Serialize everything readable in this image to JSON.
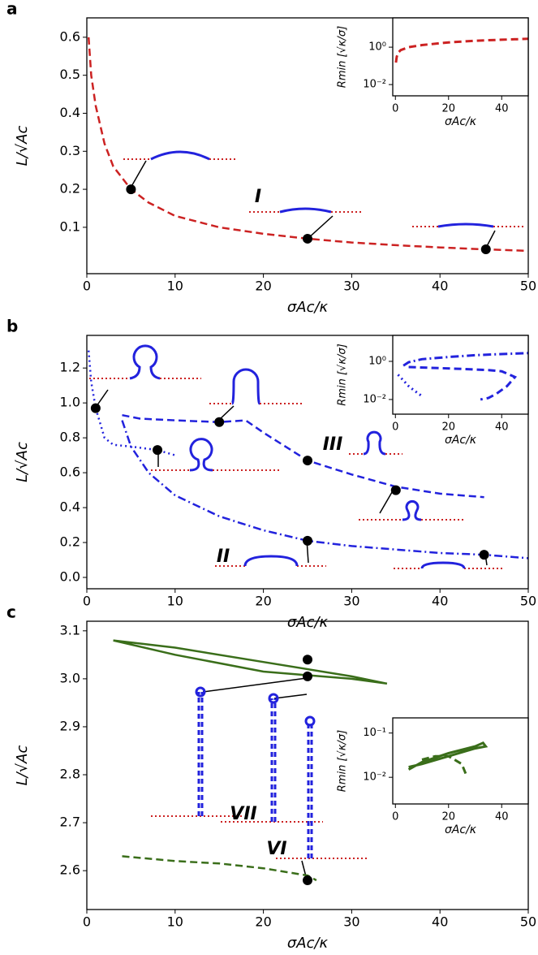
{
  "chart_data": [
    {
      "type": "line",
      "label": "a",
      "xlabel": "σAc/κ",
      "ylabel": "L/√Ac",
      "xlim": [
        0,
        50
      ],
      "xticks": [
        0,
        10,
        20,
        30,
        40,
        50
      ],
      "ylim": [
        -0.022,
        0.651
      ],
      "yticks": [
        0.1,
        0.2,
        0.3,
        0.4,
        0.5,
        0.6
      ],
      "annotations": [
        "I"
      ],
      "series": [
        {
          "style": "dashed",
          "color": "#cc2222",
          "x": [
            0.2,
            0.5,
            1,
            2,
            3,
            5,
            7,
            10,
            15,
            20,
            25,
            30,
            35,
            40,
            45,
            50
          ],
          "values": [
            0.6,
            0.5,
            0.42,
            0.32,
            0.26,
            0.2,
            0.165,
            0.13,
            0.1,
            0.083,
            0.07,
            0.06,
            0.053,
            0.047,
            0.042,
            0.038
          ]
        }
      ],
      "points": {
        "color": "#000000",
        "x": [
          5,
          25,
          45.2
        ],
        "values": [
          0.2,
          0.07,
          0.042
        ]
      }
    },
    {
      "type": "line",
      "inset": true,
      "xlabel": "σAc/κ",
      "ylabel": "Rmin [√κ/σ]",
      "log_y": true,
      "xlim": [
        -1,
        50
      ],
      "xticks": [
        0,
        20,
        40
      ],
      "ylim": [
        0.0025,
        37
      ],
      "yticks": [
        {
          "value": 0.01,
          "label": "10⁻²"
        },
        {
          "value": 1,
          "label": "10⁰"
        }
      ],
      "series": [
        {
          "style": "dashed",
          "color": "#cc2222",
          "x": [
            0.2,
            0.5,
            1,
            2,
            5,
            10,
            20,
            30,
            40,
            50
          ],
          "values": [
            0.15,
            0.3,
            0.5,
            0.7,
            1.0,
            1.3,
            1.8,
            2.2,
            2.5,
            2.8
          ]
        }
      ]
    },
    {
      "type": "line",
      "label": "b",
      "xlabel": "σAc/κ",
      "ylabel": "L/√Ac",
      "xlim": [
        0,
        50
      ],
      "xticks": [
        0,
        10,
        20,
        30,
        40,
        50
      ],
      "ylim": [
        -0.065,
        1.387
      ],
      "yticks": [
        {
          "value": 0,
          "label": "0.0"
        },
        0.2,
        0.4,
        0.6,
        0.8,
        {
          "value": 1,
          "label": "1.0"
        },
        1.2
      ],
      "annotations": [
        "II",
        "III"
      ],
      "series": [
        {
          "style": "dotted",
          "color": "#2222dd",
          "x": [
            0.2,
            0.5,
            1,
            2,
            3,
            5,
            8,
            10
          ],
          "values": [
            1.3,
            1.12,
            0.97,
            0.8,
            0.76,
            0.75,
            0.73,
            0.7
          ]
        },
        {
          "style": "dashed",
          "color": "#2222dd",
          "x": [
            4,
            6,
            10,
            15,
            18,
            20,
            25,
            30,
            35,
            40,
            45
          ],
          "values": [
            0.93,
            0.91,
            0.9,
            0.89,
            0.9,
            0.83,
            0.67,
            0.59,
            0.52,
            0.48,
            0.46
          ]
        },
        {
          "style": "dashdot",
          "color": "#2222dd",
          "x": [
            4,
            5,
            7,
            10,
            15,
            20,
            25,
            30,
            35,
            40,
            45,
            50
          ],
          "values": [
            0.9,
            0.75,
            0.6,
            0.47,
            0.35,
            0.27,
            0.21,
            0.18,
            0.16,
            0.14,
            0.13,
            0.11
          ]
        }
      ],
      "points": {
        "color": "#000000",
        "x": [
          1,
          8,
          15,
          25,
          35,
          25,
          45
        ],
        "values": [
          0.97,
          0.73,
          0.89,
          0.67,
          0.5,
          0.21,
          0.13
        ]
      }
    },
    {
      "type": "line",
      "inset": true,
      "xlabel": "σAc/κ",
      "ylabel": "Rmin [√κ/σ]",
      "log_y": true,
      "xlim": [
        -1,
        50
      ],
      "xticks": [
        0,
        20,
        40
      ],
      "ylim": [
        0.0017,
        23
      ],
      "yticks": [
        {
          "value": 0.01,
          "label": "10⁻²"
        },
        {
          "value": 1,
          "label": "10⁰"
        }
      ],
      "series": [
        {
          "style": "dashdot",
          "color": "#2222dd",
          "x": [
            3,
            5,
            10,
            20,
            30,
            40,
            50
          ],
          "values": [
            0.6,
            0.9,
            1.3,
            1.7,
            2.1,
            2.4,
            2.7
          ]
        },
        {
          "style": "dashed",
          "color": "#2222dd",
          "x": [
            5,
            15,
            25,
            35,
            40,
            45,
            42,
            38,
            35,
            32
          ],
          "values": [
            0.5,
            0.45,
            0.4,
            0.35,
            0.3,
            0.15,
            0.05,
            0.02,
            0.012,
            0.01
          ]
        },
        {
          "style": "dotted",
          "color": "#2222dd",
          "x": [
            1,
            3,
            5,
            7,
            10
          ],
          "values": [
            0.2,
            0.1,
            0.05,
            0.03,
            0.015
          ]
        }
      ]
    },
    {
      "type": "line",
      "label": "c",
      "xlabel": "σAc/κ",
      "ylabel": "L/√Ac",
      "xlim": [
        0,
        50
      ],
      "xticks": [
        0,
        10,
        20,
        30,
        40,
        50
      ],
      "ylim": [
        2.519,
        3.12
      ],
      "yticks": [
        2.6,
        2.7,
        2.8,
        2.9,
        {
          "value": 3,
          "label": "3.0"
        },
        3.1
      ],
      "annotations": [
        "VII",
        "VI"
      ],
      "series": [
        {
          "style": "solid",
          "color": "#3a6e1a",
          "x": [
            3,
            10,
            20,
            30,
            34,
            30,
            20,
            10,
            3
          ],
          "values": [
            3.08,
            3.065,
            3.035,
            3.005,
            2.99,
            3.0,
            3.015,
            3.05,
            3.08
          ]
        },
        {
          "style": "dashed",
          "color": "#3a6e1a",
          "x": [
            4,
            10,
            15,
            20,
            25,
            26
          ],
          "values": [
            2.63,
            2.62,
            2.615,
            2.605,
            2.59,
            2.58
          ]
        }
      ],
      "points": {
        "color": "#000000",
        "x": [
          25,
          25,
          25
        ],
        "values": [
          3.04,
          3.005,
          2.58
        ]
      }
    },
    {
      "type": "line",
      "inset": true,
      "xlabel": "σAc/κ",
      "ylabel": "Rmin [√κ/σ]",
      "log_y": true,
      "xlim": [
        -1,
        50
      ],
      "xticks": [
        0,
        20,
        40
      ],
      "ylim": [
        0.0025,
        0.22
      ],
      "yticks": [
        {
          "value": 0.01,
          "label": "10⁻²"
        },
        {
          "value": 0.1,
          "label": "10⁻¹"
        }
      ],
      "series": [
        {
          "style": "solid",
          "color": "#3a6e1a",
          "x": [
            5,
            10,
            20,
            30,
            33,
            34,
            30,
            20,
            10,
            5
          ],
          "values": [
            0.015,
            0.022,
            0.035,
            0.05,
            0.06,
            0.05,
            0.045,
            0.03,
            0.02,
            0.017
          ]
        },
        {
          "style": "dashed",
          "color": "#3a6e1a",
          "x": [
            10,
            15,
            20,
            25,
            27
          ],
          "values": [
            0.025,
            0.03,
            0.03,
            0.02,
            0.01
          ]
        }
      ]
    }
  ]
}
